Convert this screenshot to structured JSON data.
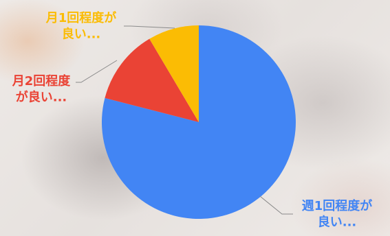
{
  "chart_data": {
    "type": "pie",
    "title": "",
    "slices": [
      {
        "label_lines": [
          "週1回程度が",
          "良い..."
        ],
        "value": 79,
        "color": "#4285f4"
      },
      {
        "label_lines": [
          "月2回程度",
          "が良い..."
        ],
        "value": 12.5,
        "color": "#ea4335"
      },
      {
        "label_lines": [
          "月1回程度が",
          "良い..."
        ],
        "value": 8.5,
        "color": "#fbbc04"
      }
    ],
    "start_angle_deg": 0,
    "direction": "clockwise",
    "legend": "none",
    "label_style": "outside-with-leader-lines"
  }
}
